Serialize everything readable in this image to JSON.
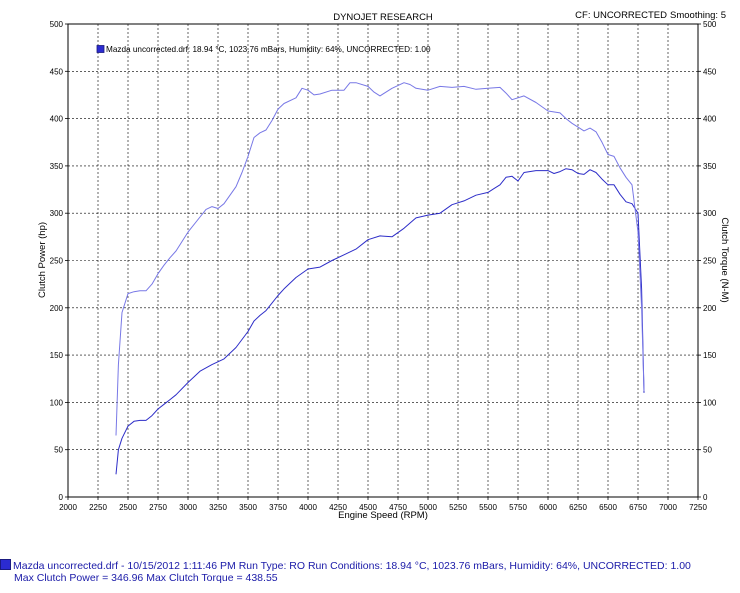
{
  "header": {
    "title": "DYNOJET RESEARCH",
    "cf_label": "CF: UNCORRECTED",
    "smoothing_label": "Smoothing: 5"
  },
  "legend": {
    "text": "Mazda uncorrected.drf: 18.94 °C, 1023.76 mBars, Humidity: 64%, UNCORRECTED: 1.00"
  },
  "footer": {
    "line1": "Mazda uncorrected.drf - 10/15/2012 1:11:46 PM  Run Type: RO  Run Conditions: 18.94 °C, 1023.76 mBars,  Humidity:  64%, UNCORRECTED: 1.00",
    "line2": "Max Clutch Power = 346.96  Max Clutch Torque = 438.55"
  },
  "colors": {
    "power": "#2d2dc8",
    "torque": "#7878e6",
    "grid": "#000000"
  },
  "chart_data": {
    "type": "line",
    "title": "DYNOJET RESEARCH",
    "xlabel": "Engine Speed (RPM)",
    "ylabel_left": "Clutch Power (hp)",
    "ylabel_right": "Clutch Torque (N-M)",
    "xlim": [
      2000,
      7250
    ],
    "ylim": [
      0,
      500
    ],
    "xticks": [
      2000,
      2250,
      2500,
      2750,
      3000,
      3250,
      3500,
      3750,
      4000,
      4250,
      4500,
      4750,
      5000,
      5250,
      5500,
      5750,
      6000,
      6250,
      6500,
      6750,
      7000,
      7250
    ],
    "yticks": [
      0,
      50,
      100,
      150,
      200,
      250,
      300,
      350,
      400,
      450,
      500
    ],
    "grid": true,
    "legend_position": "top-left",
    "series": [
      {
        "name": "Clutch Power",
        "axis": "left",
        "x": [
          2400,
          2420,
          2450,
          2500,
          2550,
          2600,
          2650,
          2700,
          2750,
          2800,
          2850,
          2900,
          3000,
          3100,
          3200,
          3300,
          3400,
          3500,
          3550,
          3600,
          3650,
          3700,
          3750,
          3800,
          3900,
          4000,
          4100,
          4200,
          4300,
          4400,
          4500,
          4600,
          4700,
          4800,
          4900,
          5000,
          5100,
          5200,
          5300,
          5400,
          5500,
          5550,
          5600,
          5650,
          5700,
          5750,
          5800,
          5900,
          6000,
          6050,
          6100,
          6150,
          6200,
          6250,
          6300,
          6350,
          6400,
          6450,
          6500,
          6550,
          6600,
          6650,
          6700,
          6750,
          6780,
          6800
        ],
        "y": [
          24,
          50,
          62,
          75,
          80,
          81,
          81,
          86,
          93,
          98,
          103,
          108,
          121,
          133,
          140,
          146,
          158,
          175,
          186,
          192,
          197,
          205,
          213,
          220,
          232,
          241,
          243,
          250,
          256,
          262,
          272,
          276,
          275,
          284,
          295,
          298,
          300,
          309,
          313,
          319,
          322,
          326,
          330,
          338,
          339,
          334,
          343,
          345,
          345,
          342,
          344,
          347,
          346,
          342,
          341,
          346,
          343,
          336,
          330,
          330,
          320,
          312,
          310,
          300,
          220,
          110
        ]
      },
      {
        "name": "Clutch Torque",
        "axis": "right",
        "x": [
          2400,
          2420,
          2450,
          2500,
          2550,
          2600,
          2650,
          2700,
          2750,
          2800,
          2850,
          2900,
          3000,
          3100,
          3150,
          3200,
          3250,
          3300,
          3400,
          3450,
          3500,
          3550,
          3600,
          3650,
          3700,
          3750,
          3800,
          3900,
          3950,
          4000,
          4050,
          4100,
          4200,
          4300,
          4350,
          4400,
          4500,
          4550,
          4600,
          4700,
          4800,
          4850,
          4900,
          5000,
          5100,
          5200,
          5300,
          5400,
          5500,
          5600,
          5650,
          5700,
          5800,
          5900,
          6000,
          6100,
          6150,
          6200,
          6300,
          6350,
          6400,
          6450,
          6500,
          6550,
          6600,
          6650,
          6700,
          6750,
          6780,
          6800
        ],
        "y": [
          65,
          140,
          195,
          215,
          217,
          218,
          218,
          225,
          236,
          245,
          253,
          260,
          280,
          296,
          304,
          307,
          305,
          310,
          328,
          343,
          360,
          380,
          385,
          388,
          398,
          410,
          416,
          422,
          432,
          430,
          425,
          426,
          430,
          430,
          438,
          438,
          434,
          428,
          424,
          432,
          438,
          436,
          432,
          430,
          434,
          433,
          434,
          431,
          432,
          433,
          427,
          420,
          424,
          417,
          408,
          406,
          400,
          395,
          387,
          390,
          386,
          375,
          362,
          360,
          348,
          338,
          330,
          280,
          200,
          112
        ]
      }
    ]
  }
}
